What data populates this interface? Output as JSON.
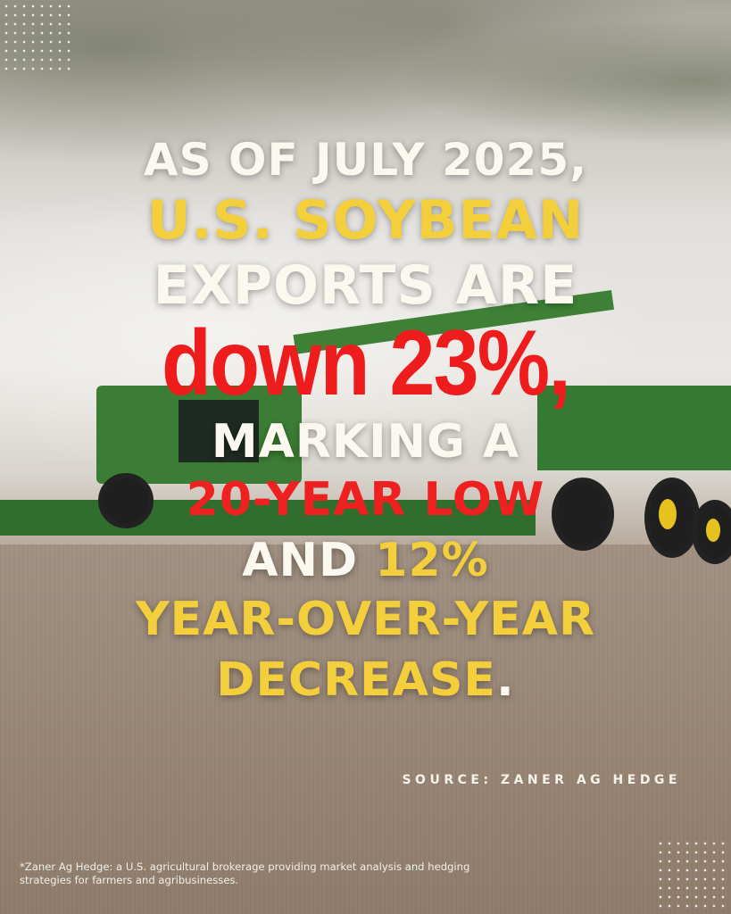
{
  "headline": {
    "line1": "AS OF JULY 2025,",
    "line2": "U.S. SOYBEAN",
    "line3": "EXPORTS ARE",
    "line4": "down 23%,",
    "line5": "MARKING A",
    "line6": "20-YEAR LOW",
    "line7a": "AND",
    "line7b": "12%",
    "line8": "YEAR-OVER-YEAR",
    "line9a": "DECREASE",
    "line9b": "."
  },
  "source": "SOURCE: ZANER AG HEDGE",
  "footnote": "*Zaner Ag Hedge: a U.S. agricultural brokerage providing market analysis and hedging strategies for farmers and agribusinesses.",
  "background_image": "combine-harvesting-soybeans-unloading-into-grain-cart",
  "colors": {
    "white": "#fbf8f0",
    "yellow": "#f4cf3c",
    "red": "#ee1c1c"
  }
}
